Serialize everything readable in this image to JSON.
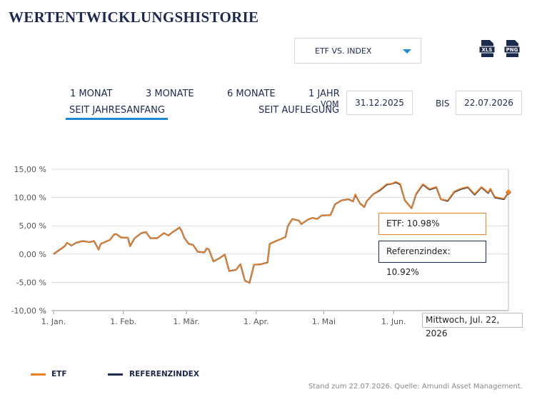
{
  "header": {
    "title": "WERTENTWICKLUNGSHISTORIE"
  },
  "selector": {
    "label": "ETF VS. INDEX"
  },
  "downloads": [
    "XLS",
    "PNG"
  ],
  "tabs": [
    "1 MONAT",
    "3 MONATE",
    "6 MONATE",
    "1 JAHR",
    "SEIT JAHRESANFANG",
    "SEIT AUFLEGUNG"
  ],
  "date_range": {
    "from_label": "VOM",
    "from": "31.12.2025",
    "to_label": "BIS",
    "to": "22.07.2026"
  },
  "tooltip": {
    "date": "Mittwoch, Jul. 22, 2026",
    "lines": [
      "ETF: 10.98%",
      "Referenzindex: 10.92%"
    ]
  },
  "footer": "Stand zum 22.07.2026. Quelle: Amundi Asset Management.",
  "chart_data": {
    "type": "line",
    "x": [
      0,
      5,
      6,
      8,
      10,
      13,
      16,
      18,
      20,
      21,
      25,
      27,
      28,
      30,
      33,
      34,
      36,
      39,
      41,
      43,
      46,
      49,
      51,
      53,
      56,
      57,
      58,
      60,
      62,
      64,
      67,
      68,
      69,
      71,
      73,
      76,
      78,
      81,
      83,
      85,
      87,
      89,
      92,
      95,
      96,
      100,
      103,
      104,
      106,
      109,
      110,
      113,
      115,
      117,
      119,
      123,
      125,
      128,
      131,
      133,
      134,
      136,
      138,
      139,
      142,
      145,
      148,
      150,
      152,
      154,
      156,
      159,
      161,
      164,
      167,
      170,
      172,
      175,
      178,
      181,
      184,
      187,
      190,
      193,
      194,
      196,
      200,
      202
    ],
    "series": [
      {
        "name": "REFERENZINDEX",
        "color": "#1b2a4e",
        "values": [
          0,
          1.4,
          2.0,
          1.5,
          2.0,
          2.3,
          2.1,
          2.3,
          0.8,
          1.8,
          2.5,
          3.5,
          3.5,
          2.9,
          2.9,
          1.4,
          2.8,
          3.7,
          3.9,
          2.8,
          2.8,
          3.7,
          3.3,
          3.9,
          4.7,
          4.0,
          2.9,
          1.8,
          1.6,
          0.4,
          0.3,
          1.0,
          0.8,
          -1.3,
          -0.9,
          -0.1,
          -3.0,
          -2.8,
          -1.8,
          -4.7,
          -5.1,
          -1.9,
          -1.8,
          -1.5,
          1.8,
          2.5,
          3.0,
          4.9,
          6.2,
          5.9,
          5.3,
          6.1,
          6.4,
          6.2,
          6.8,
          6.9,
          8.8,
          9.5,
          9.7,
          9.3,
          10.5,
          9.0,
          8.3,
          9.3,
          10.6,
          11.3,
          12.3,
          12.4,
          12.7,
          12.3,
          9.5,
          8.1,
          10.6,
          12.3,
          11.4,
          11.8,
          9.7,
          9.4,
          11.0,
          11.5,
          11.8,
          10.5,
          11.8,
          10.8,
          11.5,
          10.0,
          9.7,
          10.92
        ]
      },
      {
        "name": "ETF",
        "color": "#e8822a",
        "values": [
          0,
          1.4,
          2.0,
          1.5,
          2.0,
          2.3,
          2.1,
          2.3,
          0.8,
          1.8,
          2.5,
          3.5,
          3.5,
          2.9,
          2.9,
          1.4,
          2.8,
          3.7,
          3.9,
          2.8,
          2.8,
          3.7,
          3.3,
          3.9,
          4.7,
          4.0,
          2.9,
          1.8,
          1.6,
          0.4,
          0.3,
          1.0,
          0.8,
          -1.3,
          -0.9,
          -0.1,
          -3.0,
          -2.8,
          -1.8,
          -4.7,
          -5.1,
          -1.9,
          -1.8,
          -1.5,
          1.8,
          2.5,
          3.0,
          4.9,
          6.2,
          5.9,
          5.3,
          6.1,
          6.4,
          6.2,
          6.8,
          6.9,
          8.8,
          9.5,
          9.7,
          9.3,
          10.6,
          9.0,
          8.3,
          9.3,
          10.6,
          11.4,
          12.4,
          12.4,
          12.8,
          12.4,
          9.5,
          8.1,
          10.7,
          12.4,
          11.5,
          11.9,
          9.7,
          9.5,
          11.1,
          11.6,
          11.9,
          10.6,
          11.9,
          10.9,
          11.6,
          10.1,
          9.8,
          10.98
        ]
      }
    ],
    "xlim": [
      0,
      202
    ],
    "xticks": [
      {
        "value": 0,
        "label": "1. Jan."
      },
      {
        "value": 31,
        "label": "1. Feb."
      },
      {
        "value": 59,
        "label": "1. Mär."
      },
      {
        "value": 90,
        "label": "1. Apr."
      },
      {
        "value": 120,
        "label": "1. Mai"
      },
      {
        "value": 151,
        "label": "1. Jun."
      }
    ],
    "ylim": [
      -10,
      15
    ],
    "yticks": [
      {
        "value": -10,
        "label": "-10,00 %"
      },
      {
        "value": -5,
        "label": "-5,00 %"
      },
      {
        "value": 0,
        "label": "0,00 %"
      },
      {
        "value": 5,
        "label": "5,00 %"
      },
      {
        "value": 10,
        "label": "10,00 %"
      },
      {
        "value": 15,
        "label": "15,00 %"
      }
    ],
    "grid": true
  }
}
